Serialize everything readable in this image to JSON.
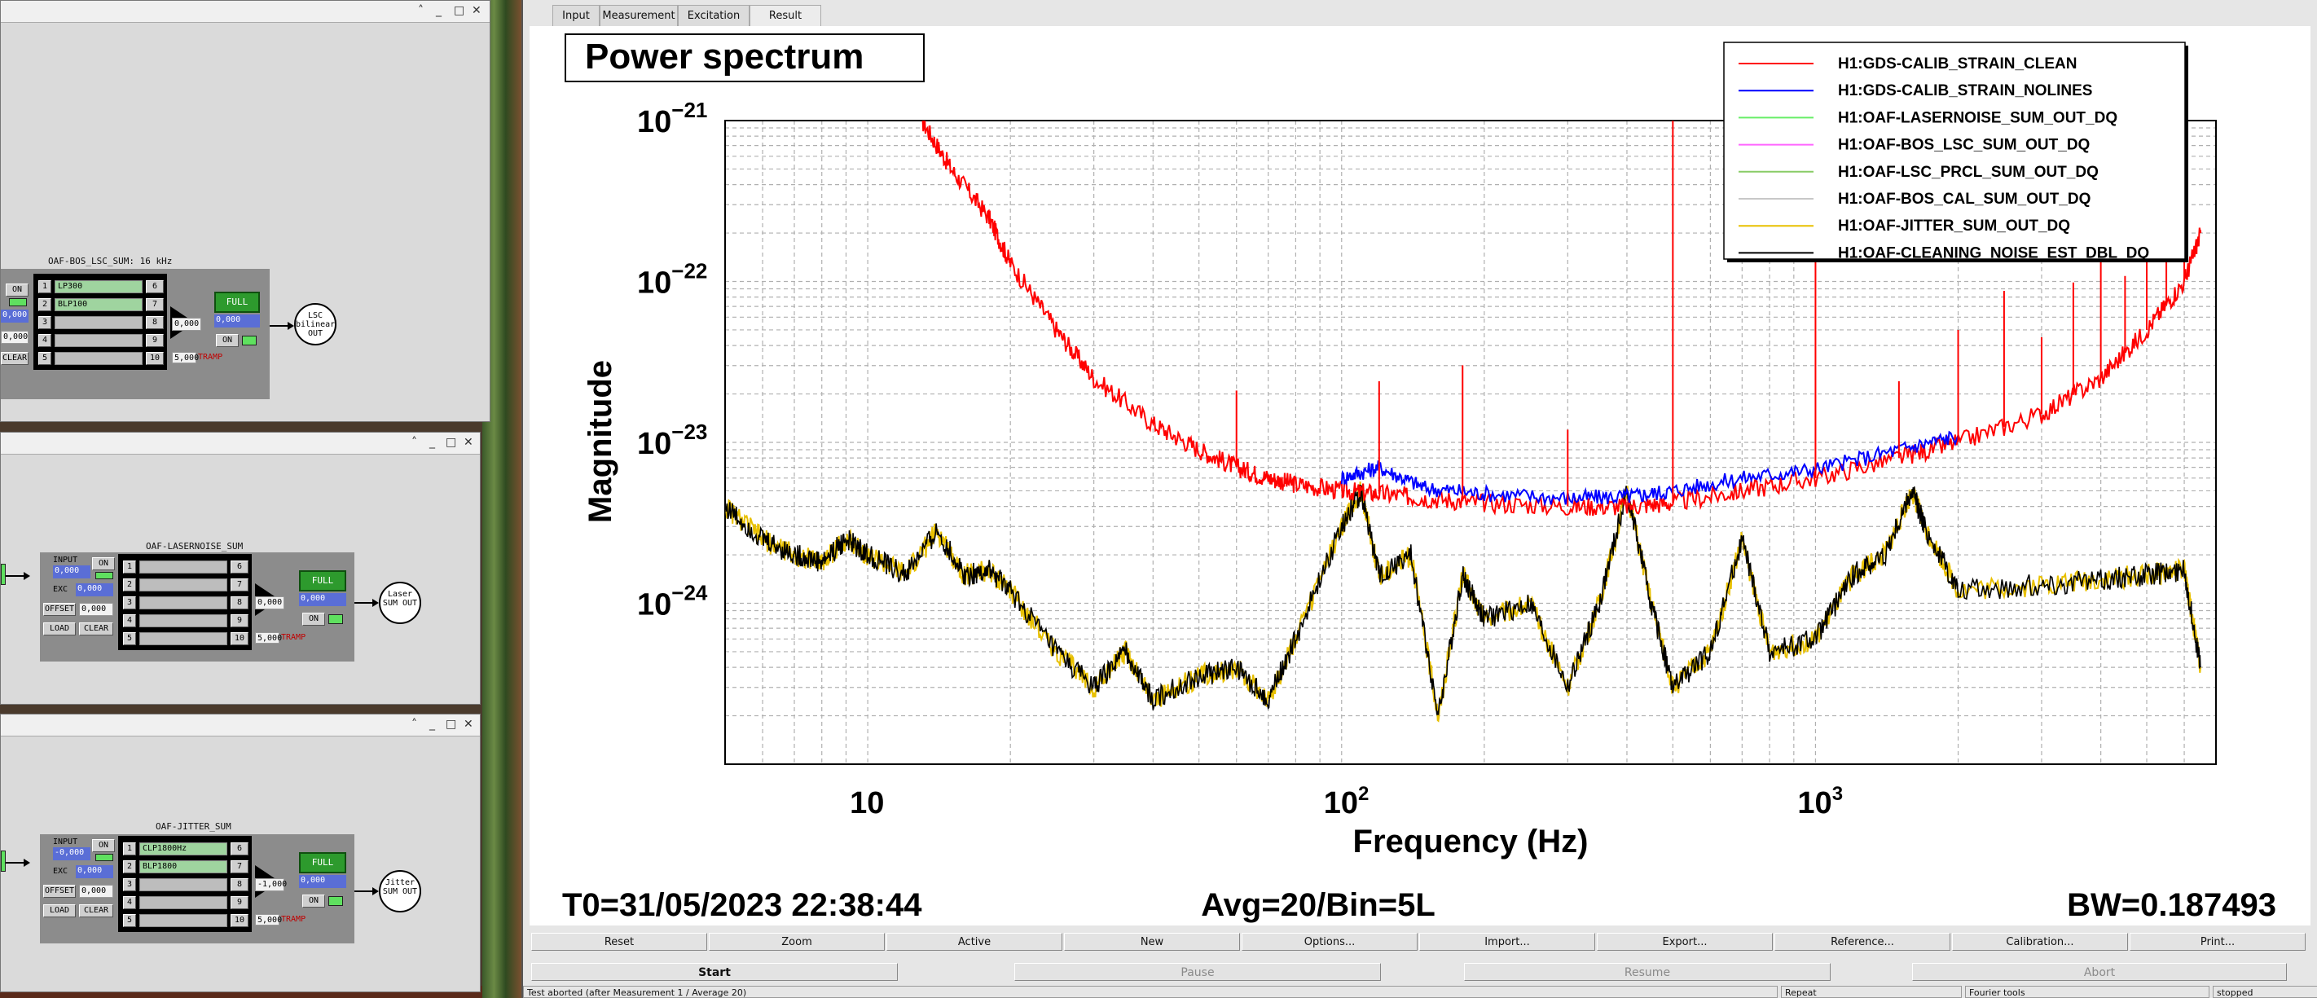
{
  "medm": {
    "lsc": {
      "title": "OAF-BOS_LSC_SUM: 16 kHz",
      "on_label": "ON",
      "in_vals": [
        "0,000",
        "0,000"
      ],
      "clear_label": "CLEAR",
      "filters_left": [
        {
          "num": "1",
          "name": "LP300"
        },
        {
          "num": "2",
          "name": "BLP100"
        },
        {
          "num": "3",
          "name": ""
        },
        {
          "num": "4",
          "name": ""
        },
        {
          "num": "5",
          "name": ""
        }
      ],
      "filters_right": [
        "6",
        "7",
        "8",
        "9",
        "10"
      ],
      "gain": "0,000",
      "full_label": "FULL",
      "out_val": "0,000",
      "out_on": "ON",
      "ramp": "5,000",
      "tramp": "TRAMP",
      "out_name": "LSC bilinear OUT"
    },
    "laser": {
      "title": "OAF-LASERNOISE_SUM",
      "input_label": "INPUT",
      "input_on": "ON",
      "input_val": "0,000",
      "exc_label": "EXC",
      "exc_val": "0,000",
      "offset_label": "OFFSET",
      "offset_val": "0,000",
      "load_label": "LOAD",
      "clear_label": "CLEAR",
      "filters_left": [
        {
          "num": "1",
          "name": ""
        },
        {
          "num": "2",
          "name": ""
        },
        {
          "num": "3",
          "name": ""
        },
        {
          "num": "4",
          "name": ""
        },
        {
          "num": "5",
          "name": ""
        }
      ],
      "filters_right": [
        "6",
        "7",
        "8",
        "9",
        "10"
      ],
      "gain": "0,000",
      "full_label": "FULL",
      "out_val": "0,000",
      "out_on": "ON",
      "ramp": "5,000",
      "tramp": "TRAMP",
      "out_name": "Laser SUM OUT"
    },
    "jitter": {
      "title": "OAF-JITTER_SUM",
      "input_label": "INPUT",
      "input_on": "ON",
      "input_val": "-0,000",
      "exc_label": "EXC",
      "exc_val": "0,000",
      "offset_label": "OFFSET",
      "offset_val": "0,000",
      "load_label": "LOAD",
      "clear_label": "CLEAR",
      "filters_left": [
        {
          "num": "1",
          "name": "CLP1800Hz"
        },
        {
          "num": "2",
          "name": "BLP1800"
        },
        {
          "num": "3",
          "name": ""
        },
        {
          "num": "4",
          "name": ""
        },
        {
          "num": "5",
          "name": ""
        }
      ],
      "filters_right": [
        "6",
        "7",
        "8",
        "9",
        "10"
      ],
      "gain": "-1,000",
      "full_label": "FULL",
      "out_val": "0,000",
      "out_on": "ON",
      "ramp": "5,000",
      "tramp": "TRAMP",
      "out_name": "Jitter SUM OUT"
    },
    "window_controls": {
      "min": "˄",
      "restore": "_",
      "max": "□",
      "close": "✕"
    }
  },
  "dtt": {
    "tabs": [
      "Input",
      "Measurement",
      "Excitation",
      "Result"
    ],
    "active_tab": "Result",
    "plot_buttons": [
      "Reset",
      "Zoom",
      "Active",
      "New",
      "Options...",
      "Import...",
      "Export...",
      "Reference...",
      "Calibration...",
      "Print..."
    ],
    "run_buttons": [
      "Start",
      "Pause",
      "Resume",
      "Abort"
    ],
    "status": [
      "Test aborted (after Measurement 1 / Average 20)",
      "Repeat",
      "Fourier tools",
      "stopped"
    ],
    "footer": {
      "t0": "T0=31/05/2023 22:38:44",
      "avg": "Avg=20/Bin=5L",
      "bw": "BW=0.187493"
    }
  },
  "chart_data": {
    "type": "line",
    "title": "Power spectrum",
    "xlabel": "Frequency (Hz)",
    "ylabel": "Magnitude",
    "x_scale": "log",
    "y_scale": "log",
    "xlim": [
      5,
      7000
    ],
    "ylim": [
      1e-25,
      1e-21
    ],
    "x_tick_labels": [
      {
        "base": "10",
        "exp": ""
      },
      {
        "base": "10",
        "exp": "2"
      },
      {
        "base": "10",
        "exp": "3"
      }
    ],
    "y_tick_labels": [
      {
        "base": "10",
        "exp": "−21"
      },
      {
        "base": "10",
        "exp": "−22"
      },
      {
        "base": "10",
        "exp": "−23"
      },
      {
        "base": "10",
        "exp": "−24"
      }
    ],
    "grid": true,
    "legend_position": "top-right",
    "series": [
      {
        "name": "H1:GDS-CALIB_STRAIN_CLEAN",
        "color": "#ff0000",
        "x": [
          13,
          15,
          18,
          20,
          25,
          30,
          40,
          50,
          60,
          70,
          80,
          100,
          120,
          150,
          200,
          300,
          400,
          500,
          700,
          1000,
          1500,
          2000,
          3000,
          4000,
          5000,
          6000,
          6500
        ],
        "y": [
          1e-21,
          5e-22,
          2.5e-22,
          1.3e-22,
          5e-23,
          2.5e-23,
          1.3e-23,
          9e-24,
          7e-24,
          6e-24,
          5.5e-24,
          5e-24,
          4.8e-24,
          4.5e-24,
          4.2e-24,
          4e-24,
          4e-24,
          4.2e-24,
          5e-24,
          6e-24,
          8e-24,
          1e-23,
          1.5e-23,
          2.5e-23,
          5e-23,
          1e-22,
          2e-22
        ]
      },
      {
        "name": "H1:GDS-CALIB_STRAIN_NOLINES",
        "color": "#0000ff",
        "x": [
          100,
          120,
          150,
          200,
          300,
          400,
          500,
          700,
          1000,
          1500,
          2000
        ],
        "y": [
          6e-24,
          7e-24,
          5.2e-24,
          4.8e-24,
          4.5e-24,
          4.6e-24,
          5e-24,
          6e-24,
          6.8e-24,
          9e-24,
          1.1e-23
        ]
      },
      {
        "name": "H1:OAF-LASERNOISE_SUM_OUT_DQ",
        "color": "#66ee66",
        "x": [],
        "y": []
      },
      {
        "name": "H1:OAF-BOS_LSC_SUM_OUT_DQ",
        "color": "#ff66ff",
        "x": [],
        "y": []
      },
      {
        "name": "H1:OAF-LSC_PRCL_SUM_OUT_DQ",
        "color": "#88cc66",
        "x": [],
        "y": []
      },
      {
        "name": "H1:OAF-BOS_CAL_SUM_OUT_DQ",
        "color": "#c8c8c8",
        "x": [],
        "y": []
      },
      {
        "name": "H1:OAF-JITTER_SUM_OUT_DQ",
        "color": "#e8c000",
        "x": [
          5,
          6,
          7,
          8,
          9,
          10,
          12,
          14,
          16,
          18,
          20,
          25,
          30,
          35,
          40,
          50,
          60,
          70,
          80,
          100,
          110,
          120,
          140,
          160,
          180,
          200,
          250,
          300,
          350,
          400,
          450,
          500,
          600,
          700,
          800,
          1000,
          1200,
          1400,
          1600,
          1700,
          2000,
          3000,
          4000,
          5000,
          6000,
          6500
        ],
        "y": [
          4e-24,
          2.5e-24,
          2e-24,
          1.8e-24,
          2.5e-24,
          2e-24,
          1.5e-24,
          2.8e-24,
          1.5e-24,
          1.6e-24,
          1.2e-24,
          5e-25,
          3e-25,
          5e-25,
          2.5e-25,
          3.5e-25,
          4e-25,
          2.5e-25,
          6e-25,
          3e-24,
          5e-24,
          1.5e-24,
          2e-24,
          2e-25,
          1.5e-24,
          8e-25,
          1e-24,
          3e-25,
          1e-24,
          5e-24,
          1e-24,
          3e-25,
          5e-25,
          2.5e-24,
          5e-25,
          6e-25,
          1.5e-24,
          2e-24,
          5e-24,
          3e-24,
          1.2e-24,
          1.3e-24,
          1.4e-24,
          1.5e-24,
          1.6e-24,
          4e-25
        ]
      },
      {
        "name": "H1:OAF-CLEANING_NOISE_EST_DBL_DQ",
        "color": "#000000",
        "x": [
          5,
          6,
          7,
          8,
          9,
          10,
          12,
          14,
          16,
          18,
          20,
          25,
          30,
          35,
          40,
          50,
          60,
          70,
          80,
          100,
          110,
          120,
          140,
          160,
          180,
          200,
          250,
          300,
          350,
          400,
          450,
          500,
          600,
          700,
          800,
          1000,
          1200,
          1400,
          1600,
          1700,
          2000,
          3000,
          4000,
          5000,
          6000,
          6500
        ],
        "y": [
          4e-24,
          2.5e-24,
          2e-24,
          1.8e-24,
          2.5e-24,
          2e-24,
          1.5e-24,
          2.8e-24,
          1.5e-24,
          1.6e-24,
          1.2e-24,
          5e-25,
          3e-25,
          5e-25,
          2.5e-25,
          3.5e-25,
          4e-25,
          2.5e-25,
          6e-25,
          3e-24,
          5e-24,
          1.5e-24,
          2e-24,
          2e-25,
          1.5e-24,
          8e-25,
          1e-24,
          3e-25,
          1e-24,
          5e-24,
          1e-24,
          3e-25,
          5e-25,
          2.5e-24,
          5e-25,
          6e-25,
          1.5e-24,
          2e-24,
          5e-24,
          3e-24,
          1.2e-24,
          1.3e-24,
          1.4e-24,
          1.5e-24,
          1.6e-24,
          4e-25
        ]
      }
    ],
    "lines_hz": [
      60,
      120,
      180,
      300,
      500,
      1000,
      1500,
      2000,
      2500,
      3000,
      3500,
      4000,
      4500,
      5000,
      5500,
      6000
    ]
  }
}
